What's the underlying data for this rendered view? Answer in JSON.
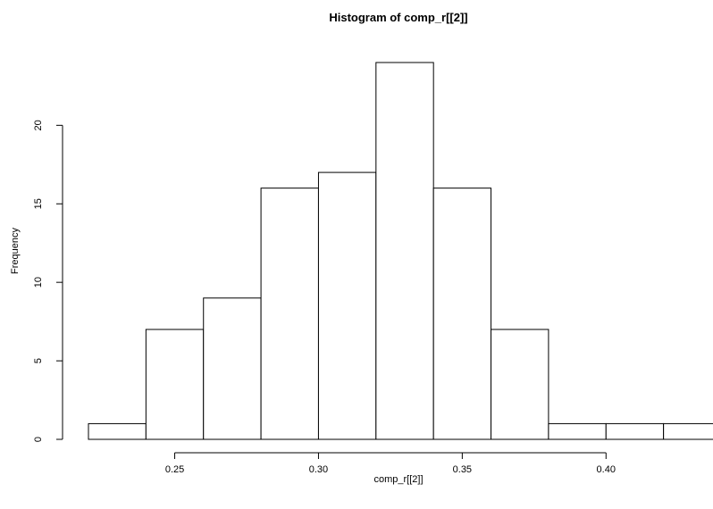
{
  "chart_data": {
    "type": "bar",
    "title": "Histogram of comp_r[[2]]",
    "xlabel": "comp_r[[2]]",
    "ylabel": "Frequency",
    "bins": [
      [
        0.22,
        0.24
      ],
      [
        0.24,
        0.26
      ],
      [
        0.26,
        0.28
      ],
      [
        0.28,
        0.3
      ],
      [
        0.3,
        0.32
      ],
      [
        0.32,
        0.34
      ],
      [
        0.34,
        0.36
      ],
      [
        0.36,
        0.38
      ],
      [
        0.38,
        0.4
      ],
      [
        0.4,
        0.42
      ],
      [
        0.42,
        0.44
      ]
    ],
    "values": [
      1,
      7,
      9,
      16,
      17,
      24,
      16,
      7,
      1,
      1,
      1
    ],
    "xlim": [
      0.22,
      0.44
    ],
    "ylim": [
      0,
      24
    ],
    "xticks": [
      0.25,
      0.3,
      0.35,
      0.4
    ],
    "xtick_labels": [
      "0.25",
      "0.30",
      "0.35",
      "0.40"
    ],
    "yticks": [
      0,
      5,
      10,
      15,
      20
    ],
    "ytick_labels": [
      "0",
      "5",
      "10",
      "15",
      "20"
    ],
    "grid": false,
    "legend": "none",
    "colors": {
      "bar_fill": "#ffffff",
      "bar_stroke": "#000000",
      "background": "#ffffff"
    }
  }
}
